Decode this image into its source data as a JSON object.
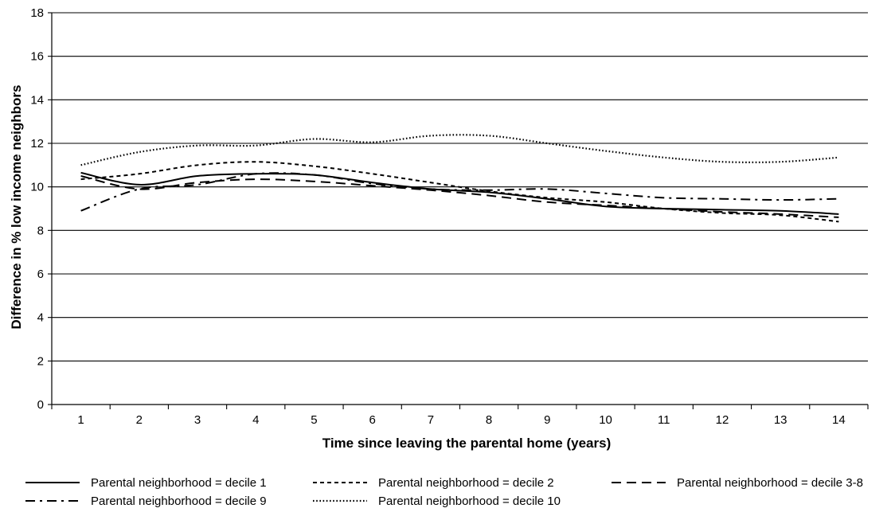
{
  "chart_data": {
    "type": "line",
    "title": "",
    "xlabel": "Time since leaving the parental home (years)",
    "ylabel": "Difference in % low income neighbors",
    "x": [
      1,
      2,
      3,
      4,
      5,
      6,
      7,
      8,
      9,
      10,
      11,
      12,
      13,
      14
    ],
    "x_ticks": [
      1,
      2,
      3,
      4,
      5,
      6,
      7,
      8,
      9,
      10,
      11,
      12,
      13,
      14
    ],
    "y_ticks": [
      0,
      2,
      4,
      6,
      8,
      10,
      12,
      14,
      16,
      18
    ],
    "ylim": [
      0,
      18
    ],
    "grid": "horizontal",
    "legend_position": "bottom",
    "series": [
      {
        "name": "Parental neighborhood = decile 1",
        "dash": "solid",
        "values": [
          10.65,
          10.1,
          10.5,
          10.6,
          10.55,
          10.2,
          9.9,
          9.75,
          9.45,
          9.1,
          9.0,
          8.95,
          8.9,
          8.75
        ]
      },
      {
        "name": "Parental neighborhood = decile 2",
        "dash": "short-dash",
        "values": [
          10.35,
          10.6,
          11.0,
          11.15,
          10.95,
          10.6,
          10.2,
          9.8,
          9.5,
          9.3,
          9.0,
          8.8,
          8.7,
          8.4
        ]
      },
      {
        "name": "Parental neighborhood = decile 3-8",
        "dash": "long-dash",
        "values": [
          10.5,
          9.9,
          10.2,
          10.35,
          10.25,
          10.05,
          9.85,
          9.6,
          9.3,
          9.15,
          9.0,
          8.85,
          8.75,
          8.6
        ]
      },
      {
        "name": "Parental neighborhood = decile 9",
        "dash": "dash-dot",
        "values": [
          8.9,
          9.9,
          10.1,
          10.6,
          10.55,
          10.15,
          9.9,
          9.85,
          9.9,
          9.7,
          9.5,
          9.45,
          9.4,
          9.45
        ]
      },
      {
        "name": "Parental neighborhood = decile 10",
        "dash": "dotted",
        "values": [
          11.0,
          11.6,
          11.9,
          11.9,
          12.2,
          12.05,
          12.35,
          12.35,
          12.0,
          11.65,
          11.35,
          11.15,
          11.15,
          11.35
        ]
      }
    ]
  }
}
